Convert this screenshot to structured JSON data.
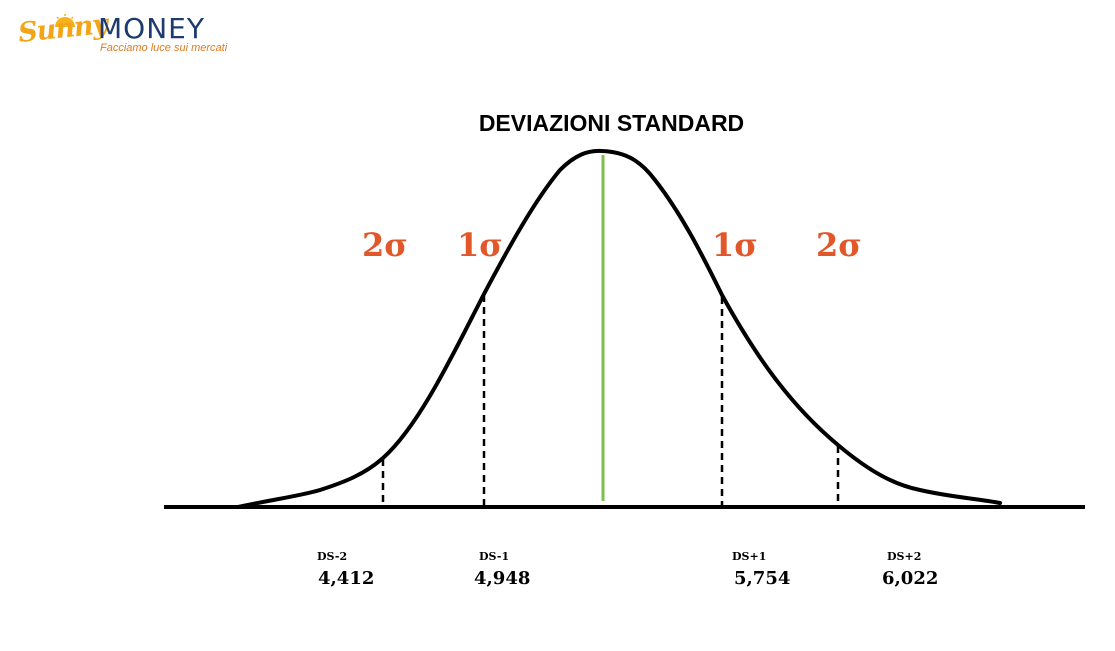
{
  "logo": {
    "brand_script": "Sunny",
    "brand_word": "MONEY",
    "tagline": "Facciamo luce sui mercati"
  },
  "title": "DEVIAZIONI STANDARD",
  "sigma_labels": {
    "left_2": "2σ",
    "left_1": "1σ",
    "right_1": "1σ",
    "right_2": "2σ"
  },
  "markers": [
    {
      "label": "DS-2",
      "value": "4,412"
    },
    {
      "label": "DS-1",
      "value": "4,948"
    },
    {
      "label": "DS+1",
      "value": "5,754"
    },
    {
      "label": "DS+2",
      "value": "6,022"
    }
  ],
  "colors": {
    "curve": "#000000",
    "mean_line": "#7cc04b",
    "sigma": "#e2572a",
    "logo_sunny": "#f2a516",
    "logo_money": "#1d3b6e",
    "logo_tagline": "#e07a1f"
  }
}
